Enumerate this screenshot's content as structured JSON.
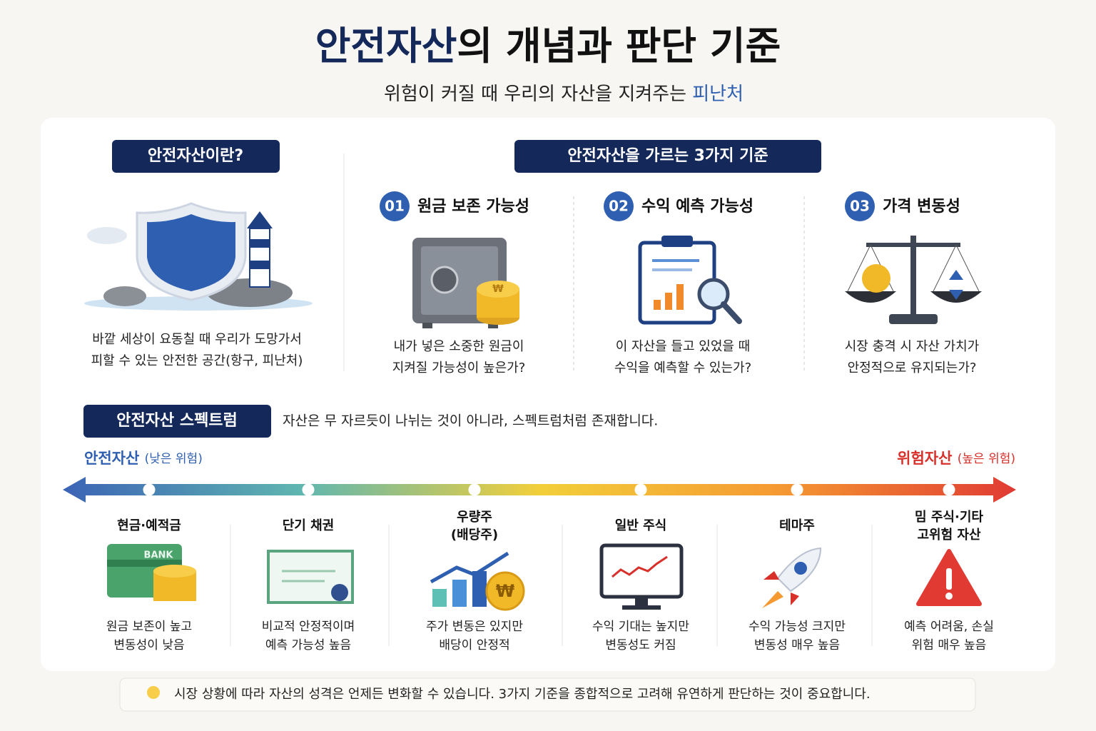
{
  "header": {
    "title_highlight": "안전자산",
    "title_rest": "의 개념과 판단 기준",
    "subtitle": "위험이 커질 때 우리의 자산을 지켜주는",
    "subtitle_highlight": "피난처"
  },
  "definition": {
    "label": "안전자산이란?",
    "lines": [
      "바깥 세상이 요동칠 때 우리가 도망가서",
      "피할 수 있는 안전한 공간(항구, 피난처)"
    ]
  },
  "criteria": {
    "label": "안전자산을 가르는 3가지 기준",
    "items": [
      {
        "number": "01",
        "title": "원금 보존 가능성",
        "lines": [
          "내가 넣은 소중한 원금이",
          "지켜질 가능성이 높은가?"
        ]
      },
      {
        "number": "02",
        "title": "수익 예측 가능성",
        "lines": [
          "이 자산을 들고 있었을 때",
          "수익을 예측할 수 있는가?"
        ]
      },
      {
        "number": "03",
        "title": "가격 변동성",
        "lines": [
          "시장 충격 시 자산 가치가",
          "안정적으로 유지되는가?"
        ]
      }
    ]
  },
  "spectrum": {
    "label": "안전자산 스펙트럼",
    "description": "자산은 무 자르듯이 나뉘는 것이 아니라, 스펙트럼처럼 존재합니다.",
    "left_label": "안전자산",
    "left_note": "(낮은 위험)",
    "right_label": "위험자산",
    "right_note": "(높은 위험)",
    "items": [
      {
        "name_lines": [
          "현금·예적금"
        ],
        "lines": [
          "원금 보존이 높고",
          "변동성이 낮음"
        ]
      },
      {
        "name_lines": [
          "단기 채권"
        ],
        "lines": [
          "비교적 안정적이며",
          "예측 가능성 높음"
        ]
      },
      {
        "name_lines": [
          "우량주",
          "(배당주)"
        ],
        "lines": [
          "주가 변동은 있지만",
          "배당이 안정적"
        ]
      },
      {
        "name_lines": [
          "일반 주식"
        ],
        "lines": [
          "수익 기대는 높지만",
          "변동성도 커짐"
        ]
      },
      {
        "name_lines": [
          "테마주"
        ],
        "lines": [
          "수익 가능성 크지만",
          "변동성 매우 높음"
        ]
      },
      {
        "name_lines": [
          "밈 주식·기타",
          "고위험 자산"
        ],
        "lines": [
          "예측 어려움, 손실",
          "위험 매우 높음"
        ]
      }
    ]
  },
  "icons": {
    "bank": "BANK",
    "won": "₩"
  },
  "footer_note": "시장 상황에 따라 자산의 성격은 언제든 변화할 수 있습니다. 3가지 기준을 종합적으로 고려해 유연하게 판단하는 것이 중요합니다."
}
